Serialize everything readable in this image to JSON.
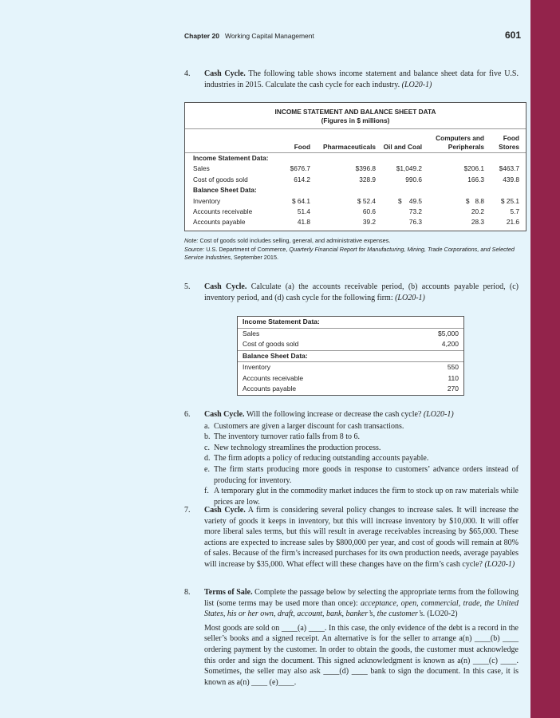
{
  "header": {
    "chapter": "Chapter 20",
    "title": "Working Capital Management",
    "page": "601"
  },
  "q4": {
    "num": "4.",
    "title": "Cash Cycle.",
    "text": "The following table shows income statement and balance sheet data for five U.S. industries in 2015. Calculate the cash cycle for each industry.",
    "lo": "(LO20-1)"
  },
  "table1": {
    "title": "INCOME STATEMENT AND BALANCE SHEET DATA",
    "subtitle": "(Figures in $ millions)",
    "columns": [
      "Food",
      "Pharmaceuticals",
      "Oil and Coal",
      "Computers and Peripherals",
      "Food Stores"
    ],
    "sections": [
      {
        "label": "Income Statement Data:",
        "rows": [
          {
            "label": "Sales",
            "values": [
              "$676.7",
              "$396.8",
              "$1,049.2",
              "$206.1",
              "$463.7"
            ]
          },
          {
            "label": "Cost of goods sold",
            "values": [
              "614.2",
              "328.9",
              "990.6",
              "166.3",
              "439.8"
            ]
          }
        ]
      },
      {
        "label": "Balance Sheet Data:",
        "rows": [
          {
            "label": "Inventory",
            "values": [
              "$ 64.1",
              "$ 52.4",
              "$    49.5",
              "$   8.8",
              "$ 25.1"
            ]
          },
          {
            "label": "Accounts receivable",
            "values": [
              "51.4",
              "60.6",
              "73.2",
              "20.2",
              "5.7"
            ]
          },
          {
            "label": "Accounts payable",
            "values": [
              "41.8",
              "39.2",
              "76.3",
              "28.3",
              "21.6"
            ]
          }
        ]
      }
    ]
  },
  "note": {
    "note_label": "Note:",
    "note_text": "Cost of goods sold includes selling, general, and administrative expenses.",
    "source_label": "Source:",
    "source_text1": "U.S. Department of Commerce,",
    "source_italic": "Quarterly Financial Report for Manufacturing, Mining, Trade Corporations, and Selected Service Industries",
    "source_text2": ", September 2015."
  },
  "q5": {
    "num": "5.",
    "title": "Cash Cycle.",
    "text": "Calculate (a) the accounts receivable period, (b) accounts payable period, (c) inventory period, and (d) cash cycle for the following firm:",
    "lo": "(LO20-1)"
  },
  "table2": {
    "sections": [
      {
        "label": "Income Statement Data:",
        "rows": [
          {
            "label": "Sales",
            "value": "$5,000"
          },
          {
            "label": "Cost of goods sold",
            "value": "4,200"
          }
        ]
      },
      {
        "label": "Balance Sheet Data:",
        "rows": [
          {
            "label": "Inventory",
            "value": "550"
          },
          {
            "label": "Accounts receivable",
            "value": "110"
          },
          {
            "label": "Accounts payable",
            "value": "270"
          }
        ]
      }
    ]
  },
  "q6": {
    "num": "6.",
    "title": "Cash Cycle.",
    "text": "Will the following increase or decrease the cash cycle?",
    "lo": "(LO20-1)",
    "items": [
      {
        "l": "a.",
        "t": "Customers are given a larger discount for cash transactions."
      },
      {
        "l": "b.",
        "t": "The inventory turnover ratio falls from 8 to 6."
      },
      {
        "l": "c.",
        "t": "New technology streamlines the production process."
      },
      {
        "l": "d.",
        "t": "The firm adopts a policy of reducing outstanding accounts payable."
      },
      {
        "l": "e.",
        "t": "The firm starts producing more goods in response to customers’ advance orders instead of producing for inventory."
      },
      {
        "l": "f.",
        "t": "A temporary glut in the commodity market induces the firm to stock up on raw materials while prices are low."
      }
    ]
  },
  "q7": {
    "num": "7.",
    "title": "Cash Cycle.",
    "text": "A firm is considering several policy changes to increase sales. It will increase the variety of goods it keeps in inventory, but this will increase inventory by $10,000. It will offer more liberal sales terms, but this will result in average receivables increasing by $65,000. These actions are expected to increase sales by $800,000 per year, and cost of goods will remain at 80% of sales. Because of the firm’s increased purchases for its own production needs, average payables will increase by $35,000. What effect will these changes have on the firm’s cash cycle?",
    "lo": "(LO20-1)"
  },
  "q8": {
    "num": "8.",
    "title": "Terms of Sale.",
    "text": "Complete the passage below by selecting the appropriate terms from the following list (some terms may be used more than once):",
    "terms": "acceptance, open, commercial, trade, the United States, his or her own, draft, account, bank, banker’s, the customer’s.",
    "lo": "(LO20-2)",
    "passage": "Most goods are sold on ____(a) ____. In this case, the only evidence of the debt is a record in the seller’s books and a signed receipt. An alternative is for the seller to arrange a(n) ____(b) ____ ordering payment by the customer. In order to obtain the goods, the customer must acknowledge this order and sign the document. This signed acknowledgment is known as a(n) ____(c) ____. Sometimes, the seller may also ask ____(d) ____ bank to sign the document. In this case, it is known as a(n) ____ (e)____."
  },
  "colors": {
    "background": "#e5f4fb",
    "margin_bar": "#93234b"
  }
}
